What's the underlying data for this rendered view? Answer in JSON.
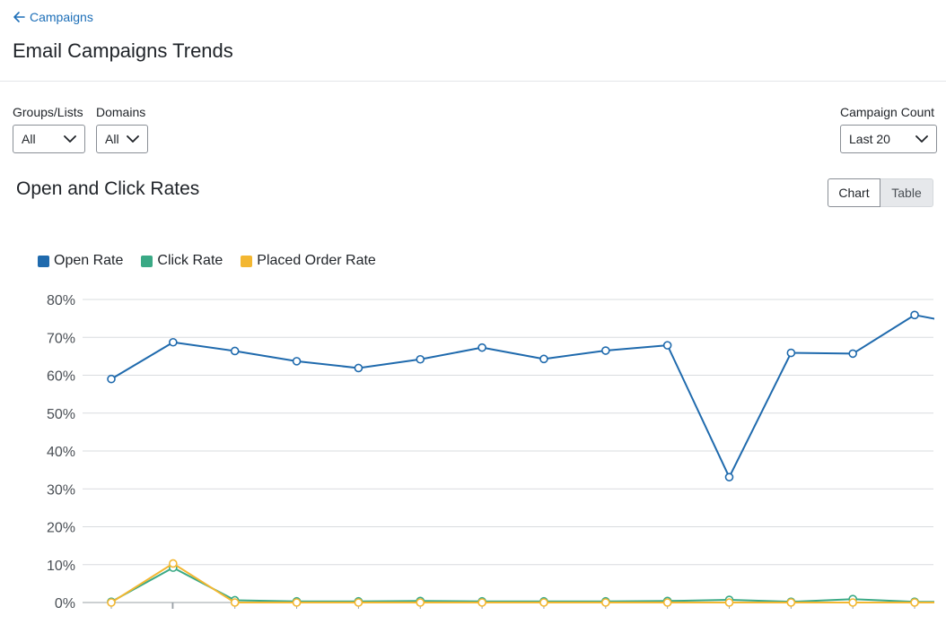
{
  "header": {
    "back_label": "Campaigns",
    "title": "Email Campaigns Trends"
  },
  "filters": {
    "groups": {
      "label": "Groups/Lists",
      "value": "All"
    },
    "domains": {
      "label": "Domains",
      "value": "All"
    },
    "campaign_count": {
      "label": "Campaign Count",
      "value": "Last 20"
    }
  },
  "section": {
    "title": "Open and Click Rates",
    "view_toggle": {
      "chart_label": "Chart",
      "table_label": "Table",
      "selected": "Chart"
    }
  },
  "icons": {
    "back": "arrow-left-icon",
    "dropdown": "chevron-down-icon"
  },
  "colors": {
    "accent": "#1d6fb8",
    "open_rate": "#1f6aad",
    "click_rate": "#3aa985",
    "placed_order_rate": "#f3b731"
  },
  "chart_data": {
    "type": "line",
    "title": "",
    "xlabel": "",
    "ylabel": "",
    "ylim": [
      0,
      80
    ],
    "y_ticks": [
      "0%",
      "10%",
      "20%",
      "30%",
      "40%",
      "50%",
      "60%",
      "70%",
      "80%"
    ],
    "grid": true,
    "legend_position": "top-left",
    "x": [
      1,
      2,
      3,
      4,
      5,
      6,
      7,
      8,
      9,
      10,
      11,
      12,
      13,
      14,
      15
    ],
    "series": [
      {
        "name": "Open Rate",
        "color": "#1f6aad",
        "values": [
          59.0,
          68.7,
          66.4,
          63.7,
          61.9,
          64.2,
          67.3,
          64.3,
          66.5,
          67.9,
          33.1,
          65.9,
          65.7,
          75.9,
          72.8
        ]
      },
      {
        "name": "Click Rate",
        "color": "#3aa985",
        "values": [
          0.2,
          9.2,
          0.6,
          0.3,
          0.3,
          0.4,
          0.3,
          0.3,
          0.3,
          0.4,
          0.7,
          0.2,
          0.9,
          0.2,
          0.1
        ]
      },
      {
        "name": "Placed Order Rate",
        "color": "#f3b731",
        "values": [
          0.0,
          10.3,
          0.0,
          0.0,
          0.0,
          0.0,
          0.0,
          0.0,
          0.0,
          0.0,
          0.0,
          0.0,
          0.0,
          0.0,
          0.0
        ]
      }
    ]
  }
}
